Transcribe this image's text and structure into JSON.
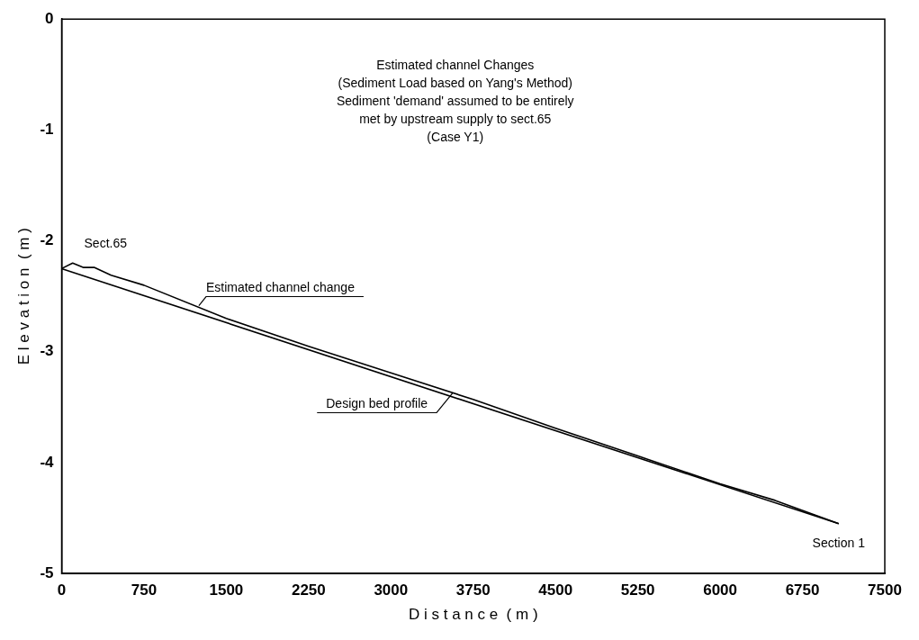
{
  "chart_data": {
    "type": "line",
    "title": "Estimated channel Changes",
    "subtitle": "(Sediment Load based on Yang's Method)\nSediment 'demand' assumed to be entirely\nmet by upstream supply to sect.65\n(Case Y1)",
    "xlabel": "D i s t a n c e  ( m )",
    "ylabel": "E l e v a t i o n  ( m )",
    "series": [
      {
        "name": "Estimated channel change",
        "color": "#000000",
        "x": [
          0,
          100,
          200,
          300,
          450,
          750,
          1500,
          2250,
          3000,
          3750,
          4500,
          5250,
          6000,
          6500,
          7080
        ],
        "values": [
          -2.25,
          -2.2,
          -2.24,
          -2.24,
          -2.31,
          -2.4,
          -2.7,
          -2.95,
          -3.19,
          -3.43,
          -3.69,
          -3.94,
          -4.19,
          -4.34,
          -4.55
        ]
      },
      {
        "name": "Design bed profile",
        "color": "#000000",
        "x": [
          0,
          7080
        ],
        "values": [
          -2.25,
          -4.55
        ]
      }
    ],
    "annotations": [
      {
        "text": "Sect.65",
        "x": 0,
        "y": -2.25
      },
      {
        "text": "Section 1",
        "x": 7080,
        "y": -4.55
      }
    ],
    "xlim": [
      0,
      7500
    ],
    "xticks": [
      0,
      750,
      1500,
      2250,
      3000,
      3750,
      4500,
      5250,
      6000,
      6750,
      7500
    ],
    "ylim": [
      -5,
      0
    ],
    "yticks": [
      -5,
      -4,
      -3,
      -2,
      -1,
      0
    ],
    "grid": false,
    "legend": false,
    "marker": "none",
    "line_style": "solid"
  }
}
